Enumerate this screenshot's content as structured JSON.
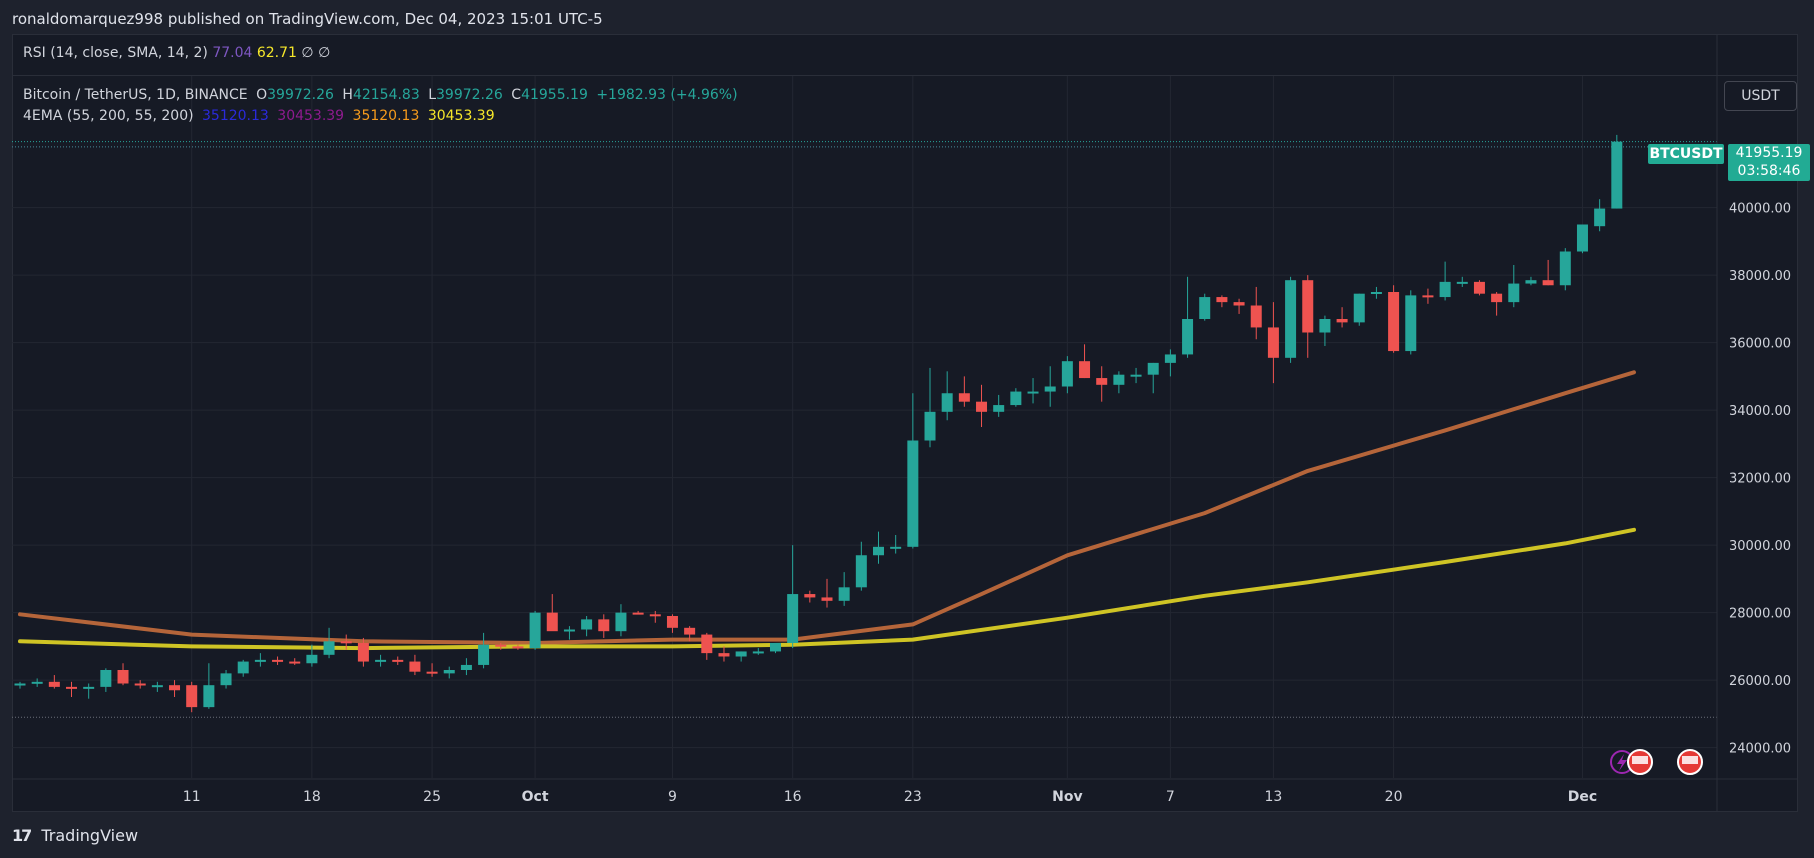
{
  "header": {
    "published": "ronaldomarquez998 published on TradingView.com, Dec 04, 2023 15:01 UTC-5"
  },
  "rsi": {
    "label": "RSI (14, close, SMA, 14, 2)",
    "v1": "77.04",
    "v2": "62.71",
    "v3": "∅",
    "v4": "∅"
  },
  "symbol": {
    "name": "Bitcoin / TetherUS, 1D, BINANCE",
    "o_label": "O",
    "o": "39972.26",
    "h_label": "H",
    "h": "42154.83",
    "l_label": "L",
    "l": "39972.26",
    "c_label": "C",
    "c": "41955.19",
    "change": "+1982.93 (+4.96%)"
  },
  "ema": {
    "label": "4EMA (55, 200, 55, 200)",
    "v1": "35120.13",
    "v2": "30453.39",
    "v3": "35120.13",
    "v4": "30453.39"
  },
  "currency_button": "USDT",
  "last_price": {
    "symbol": "BTCUSDT",
    "price": "41955.19",
    "countdown": "03:58:46"
  },
  "footer": {
    "logo": "17",
    "brand": "TradingView"
  },
  "colors": {
    "up": "#26a69a",
    "down": "#ef5350",
    "ema_fast": "#b5653a",
    "ema_slow": "#cfc425",
    "rsi_v1": "#7e57c2",
    "rsi_v2": "#f5e72a",
    "ema_v1": "#2a2ad9",
    "ema_v2": "#8e1a8e",
    "ema_v3": "#f59a1c",
    "ema_v4": "#f5e72a",
    "grid": "#232732",
    "axis_text": "#d1d4dc"
  },
  "chart_data": {
    "type": "candlestick",
    "title": "Bitcoin / TetherUS, 1D, BINANCE",
    "ylim": [
      23100,
      43900
    ],
    "y_ticks": [
      24000,
      26000,
      28000,
      30000,
      32000,
      34000,
      36000,
      38000,
      40000
    ],
    "y_tick_labels": [
      "24000.00",
      "26000.00",
      "28000.00",
      "30000.00",
      "32000.00",
      "34000.00",
      "36000.00",
      "38000.00",
      "40000.00"
    ],
    "x_ticks": [
      {
        "label": "11",
        "idx": 10,
        "bold": false
      },
      {
        "label": "18",
        "idx": 17,
        "bold": false
      },
      {
        "label": "25",
        "idx": 24,
        "bold": false
      },
      {
        "label": "Oct",
        "idx": 30,
        "bold": true
      },
      {
        "label": "9",
        "idx": 38,
        "bold": false
      },
      {
        "label": "16",
        "idx": 45,
        "bold": false
      },
      {
        "label": "23",
        "idx": 52,
        "bold": false
      },
      {
        "label": "Nov",
        "idx": 61,
        "bold": true
      },
      {
        "label": "7",
        "idx": 67,
        "bold": false
      },
      {
        "label": "13",
        "idx": 73,
        "bold": false
      },
      {
        "label": "20",
        "idx": 80,
        "bold": false
      },
      {
        "label": "Dec",
        "idx": 91,
        "bold": true
      }
    ],
    "ohlc": [
      [
        25850,
        25950,
        25750,
        25900
      ],
      [
        25900,
        26050,
        25800,
        25950
      ],
      [
        25950,
        26150,
        25750,
        25800
      ],
      [
        25800,
        25950,
        25500,
        25750
      ],
      [
        25750,
        25900,
        25450,
        25800
      ],
      [
        25800,
        26350,
        25650,
        26300
      ],
      [
        26300,
        26500,
        25850,
        25900
      ],
      [
        25900,
        26000,
        25750,
        25850
      ],
      [
        25850,
        25950,
        25650,
        25850
      ],
      [
        25850,
        26000,
        25500,
        25700
      ],
      [
        25850,
        25950,
        25050,
        25200
      ],
      [
        25200,
        26500,
        25150,
        25850
      ],
      [
        25850,
        26300,
        25750,
        26200
      ],
      [
        26200,
        26600,
        26100,
        26550
      ],
      [
        26550,
        26800,
        26400,
        26600
      ],
      [
        26600,
        26700,
        26450,
        26550
      ],
      [
        26550,
        26650,
        26450,
        26500
      ],
      [
        26500,
        27050,
        26400,
        26750
      ],
      [
        26750,
        27550,
        26650,
        27150
      ],
      [
        27150,
        27350,
        26900,
        27100
      ],
      [
        27100,
        27250,
        26400,
        26550
      ],
      [
        26550,
        26750,
        26400,
        26600
      ],
      [
        26600,
        26700,
        26450,
        26550
      ],
      [
        26550,
        26750,
        26150,
        26250
      ],
      [
        26250,
        26500,
        26100,
        26200
      ],
      [
        26200,
        26400,
        26050,
        26300
      ],
      [
        26300,
        26650,
        26150,
        26450
      ],
      [
        26450,
        27400,
        26350,
        27050
      ],
      [
        27050,
        27100,
        26900,
        27000
      ],
      [
        27000,
        27050,
        26900,
        26950
      ],
      [
        26950,
        28050,
        26900,
        28000
      ],
      [
        28000,
        28550,
        27500,
        27450
      ],
      [
        27450,
        27600,
        27200,
        27500
      ],
      [
        27500,
        27900,
        27300,
        27800
      ],
      [
        27800,
        27950,
        27250,
        27450
      ],
      [
        27450,
        28250,
        27300,
        28000
      ],
      [
        28000,
        28050,
        27950,
        27950
      ],
      [
        27950,
        28050,
        27700,
        27900
      ],
      [
        27900,
        27950,
        27400,
        27550
      ],
      [
        27550,
        27600,
        27150,
        27350
      ],
      [
        27350,
        27400,
        26600,
        26800
      ],
      [
        26800,
        27000,
        26550,
        26700
      ],
      [
        26700,
        26850,
        26550,
        26850
      ],
      [
        26850,
        26950,
        26750,
        26850
      ],
      [
        26850,
        27050,
        26800,
        27100
      ],
      [
        27100,
        30000,
        26950,
        28550
      ],
      [
        28550,
        28650,
        28300,
        28450
      ],
      [
        28450,
        29000,
        28150,
        28350
      ],
      [
        28350,
        29200,
        28200,
        28750
      ],
      [
        28750,
        30100,
        28650,
        29700
      ],
      [
        29700,
        30400,
        29450,
        29950
      ],
      [
        29950,
        30300,
        29750,
        29950
      ],
      [
        29950,
        34500,
        29900,
        33100
      ],
      [
        33100,
        35250,
        32900,
        33950
      ],
      [
        33950,
        35150,
        33700,
        34500
      ],
      [
        34500,
        35000,
        34100,
        34250
      ],
      [
        34250,
        34750,
        33500,
        33950
      ],
      [
        33950,
        34450,
        33800,
        34150
      ],
      [
        34150,
        34650,
        34100,
        34550
      ],
      [
        34550,
        34950,
        34200,
        34550
      ],
      [
        34550,
        35300,
        34100,
        34700
      ],
      [
        34700,
        35600,
        34500,
        35450
      ],
      [
        35450,
        35950,
        34950,
        34950
      ],
      [
        34950,
        35300,
        34250,
        34750
      ],
      [
        34750,
        35150,
        34500,
        35050
      ],
      [
        35050,
        35250,
        34800,
        35050
      ],
      [
        35050,
        35400,
        34500,
        35400
      ],
      [
        35400,
        35800,
        35000,
        35650
      ],
      [
        35650,
        37950,
        35550,
        36700
      ],
      [
        36700,
        37450,
        36650,
        37350
      ],
      [
        37350,
        37400,
        37050,
        37200
      ],
      [
        37200,
        37300,
        36850,
        37100
      ],
      [
        37100,
        37650,
        36100,
        36450
      ],
      [
        36450,
        37200,
        34800,
        35550
      ],
      [
        35550,
        37950,
        35400,
        37850
      ],
      [
        37850,
        38000,
        35550,
        36300
      ],
      [
        36300,
        36800,
        35900,
        36700
      ],
      [
        36700,
        37050,
        36450,
        36600
      ],
      [
        36600,
        37450,
        36500,
        37450
      ],
      [
        37450,
        37650,
        37300,
        37500
      ],
      [
        37500,
        37700,
        35700,
        35750
      ],
      [
        35750,
        37550,
        35650,
        37400
      ],
      [
        37400,
        37600,
        37150,
        37350
      ],
      [
        37350,
        38400,
        37250,
        37800
      ],
      [
        37800,
        37950,
        37650,
        37800
      ],
      [
        37800,
        37850,
        37400,
        37450
      ],
      [
        37450,
        37500,
        36800,
        37200
      ],
      [
        37200,
        38300,
        37050,
        37750
      ],
      [
        37750,
        37950,
        37700,
        37850
      ],
      [
        37850,
        38450,
        37700,
        37700
      ],
      [
        37700,
        38800,
        37550,
        38700
      ],
      [
        38700,
        39500,
        38650,
        39500
      ],
      [
        39450,
        40250,
        39300,
        39972.26
      ],
      [
        39972.26,
        42154.83,
        39972.26,
        41955.19
      ]
    ],
    "series": [
      {
        "name": "EMA 55",
        "color": "#b5653a",
        "points": [
          [
            0,
            27950
          ],
          [
            10,
            27350
          ],
          [
            20,
            27150
          ],
          [
            30,
            27100
          ],
          [
            38,
            27200
          ],
          [
            45,
            27200
          ],
          [
            52,
            27650
          ],
          [
            56,
            28550
          ],
          [
            61,
            29700
          ],
          [
            69,
            30950
          ],
          [
            75,
            32200
          ],
          [
            83,
            33400
          ],
          [
            90,
            34500
          ],
          [
            94,
            35120.13
          ]
        ]
      },
      {
        "name": "EMA 200",
        "color": "#cfc425",
        "points": [
          [
            0,
            27150
          ],
          [
            10,
            27000
          ],
          [
            20,
            26950
          ],
          [
            30,
            27000
          ],
          [
            38,
            27000
          ],
          [
            45,
            27050
          ],
          [
            52,
            27200
          ],
          [
            61,
            27850
          ],
          [
            69,
            28500
          ],
          [
            75,
            28900
          ],
          [
            83,
            29500
          ],
          [
            90,
            30050
          ],
          [
            94,
            30453.39
          ]
        ]
      }
    ],
    "levels": [
      {
        "name": "current-price",
        "value": 41955.19,
        "color": "#26a69a"
      },
      {
        "name": "last-close-ref",
        "value": 41800,
        "color": "#4a8a9a"
      },
      {
        "name": "lower-ref",
        "value": 24900,
        "color": "#6a6e79"
      }
    ]
  }
}
